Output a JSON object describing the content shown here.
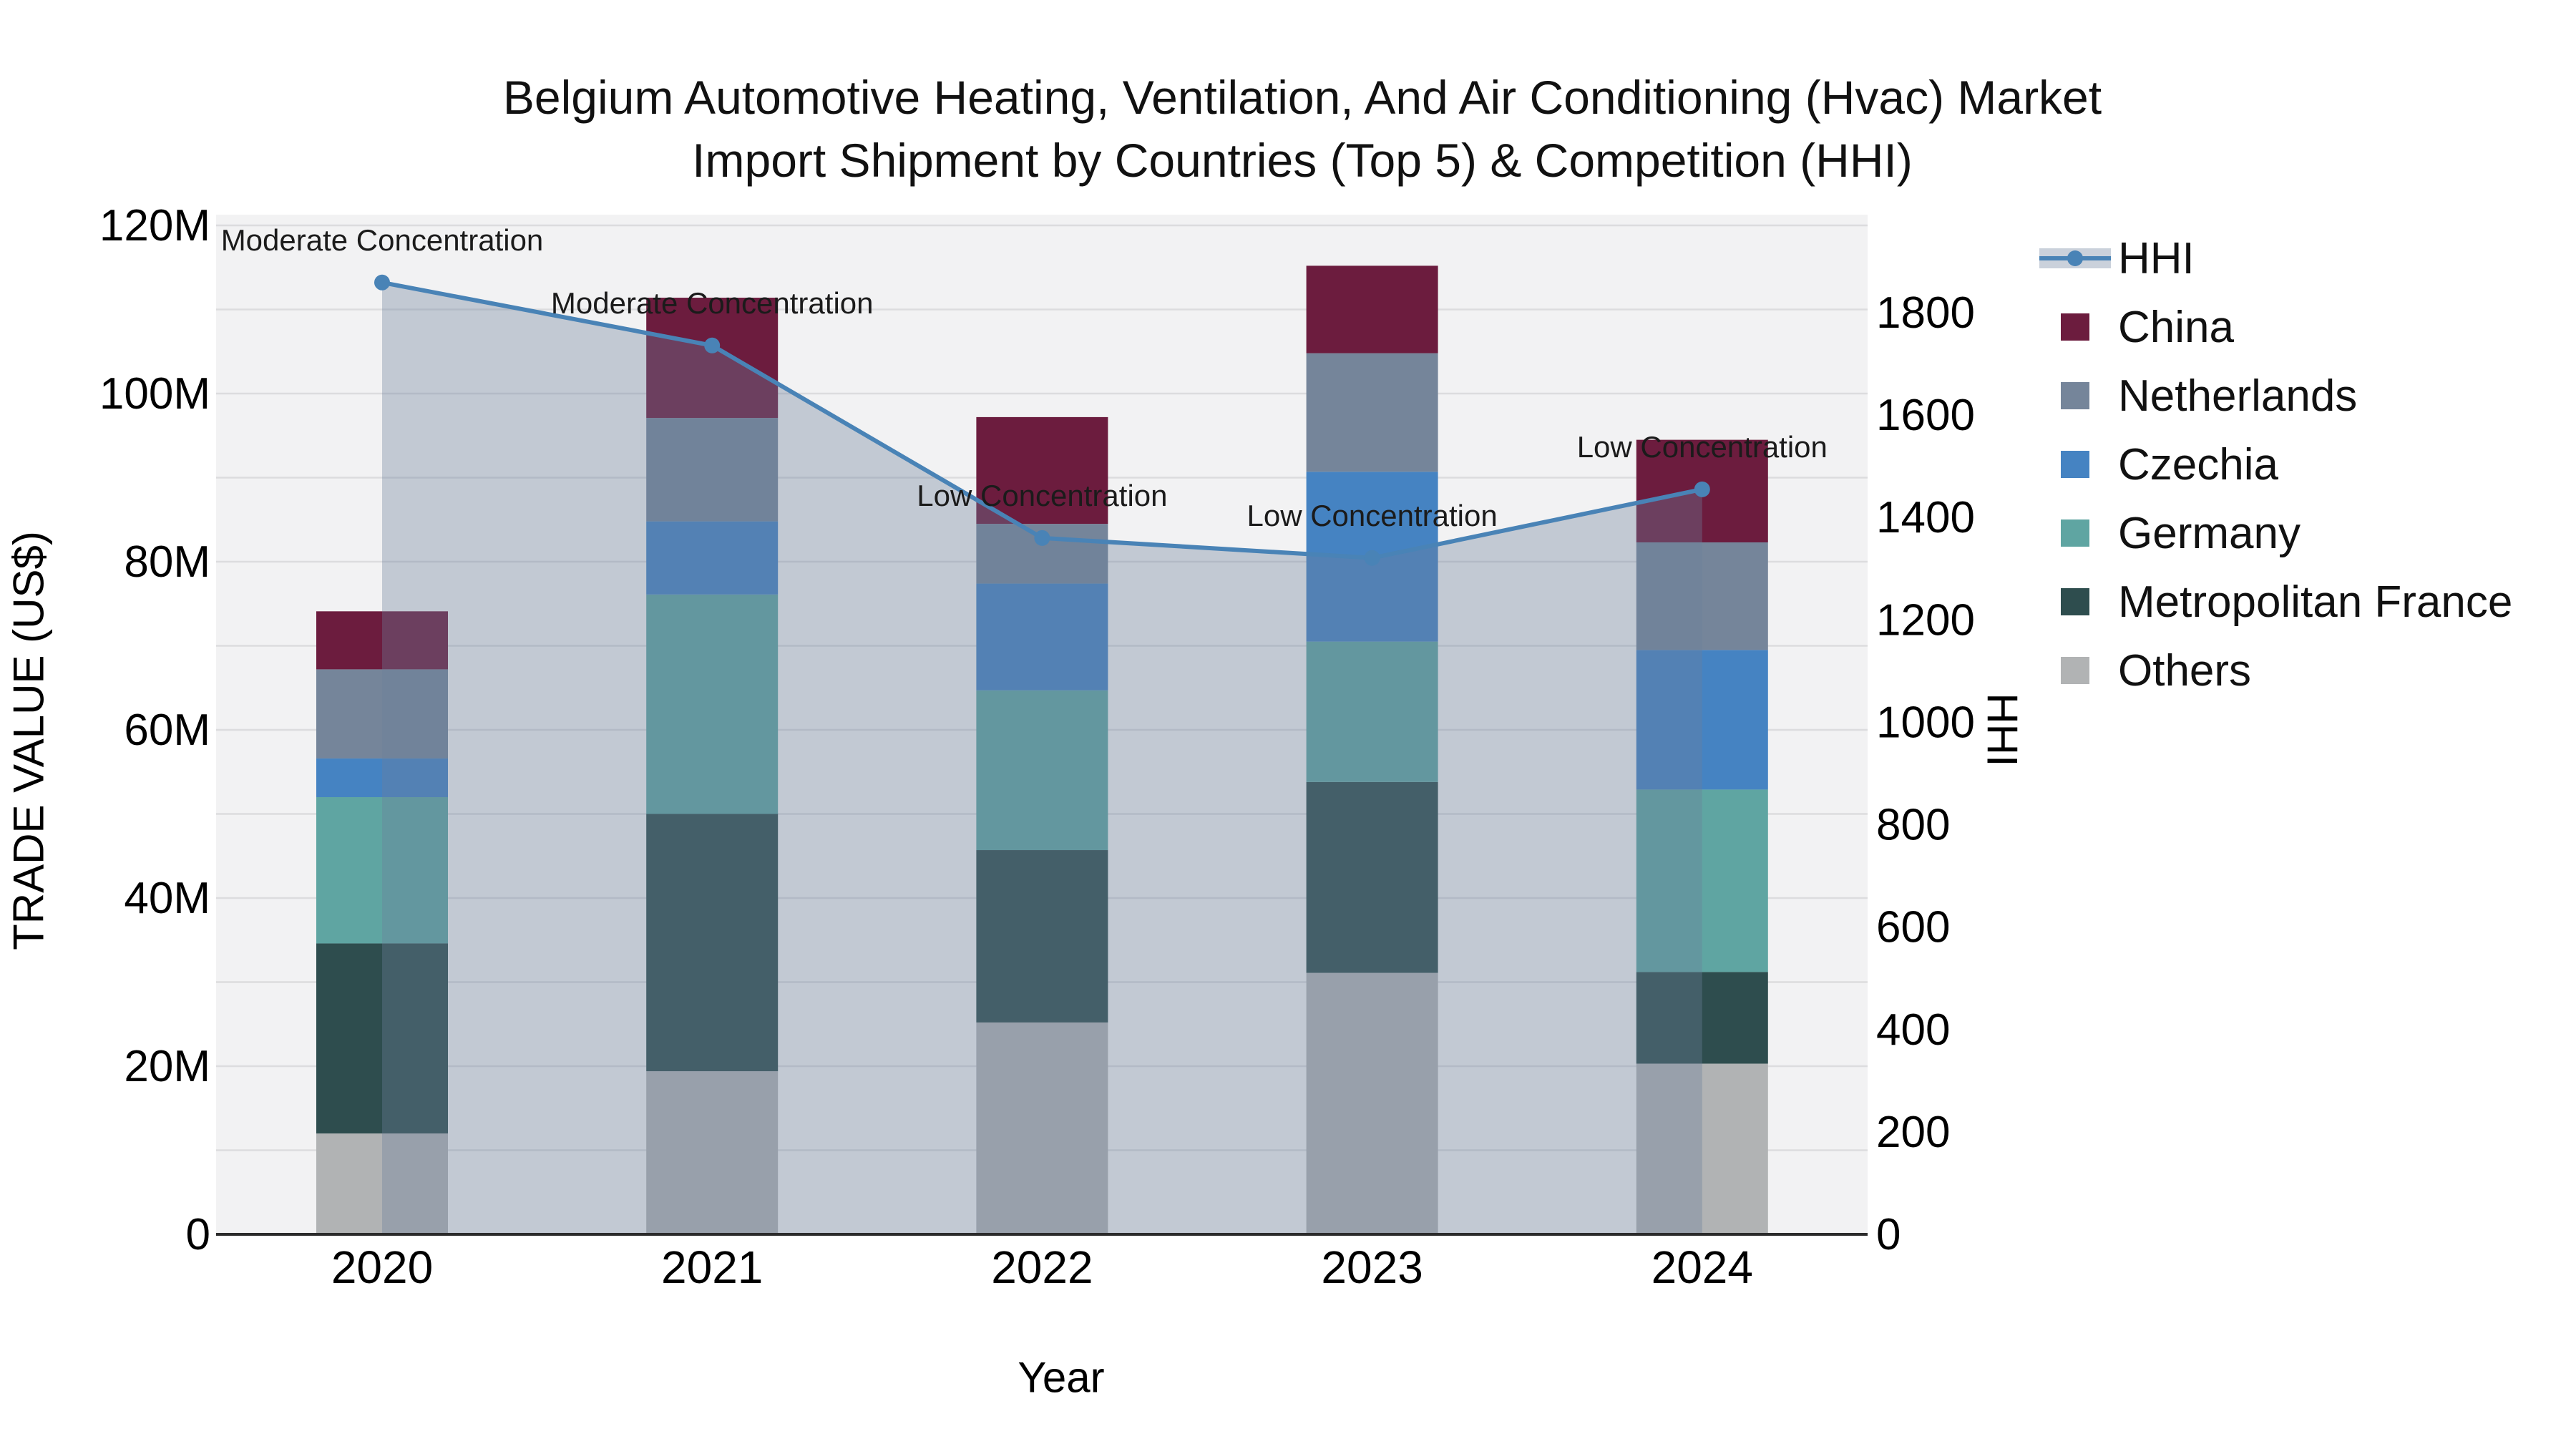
{
  "title": {
    "line1": "Belgium Automotive Heating, Ventilation, And Air Conditioning (Hvac) Market",
    "line2": "Import Shipment by Countries (Top 5) & Competition (HHI)"
  },
  "axes": {
    "left_label": "TRADE VALUE (US$)",
    "right_label": "HHI",
    "x_label": "Year",
    "left_ticks": [
      "0",
      "20M",
      "40M",
      "60M",
      "80M",
      "100M",
      "120M"
    ],
    "right_ticks": [
      "0",
      "200",
      "400",
      "600",
      "800",
      "1000",
      "1200",
      "1400",
      "1600",
      "1800"
    ]
  },
  "legend": [
    {
      "label": "HHI",
      "swatch": "line",
      "color": "#4983B6",
      "fill": "rgba(108,127,155,0.36)"
    },
    {
      "label": "China",
      "swatch": "box",
      "color": "#6C1C3E"
    },
    {
      "label": "Netherlands",
      "swatch": "box",
      "color": "#75859A"
    },
    {
      "label": "Czechia",
      "swatch": "box",
      "color": "#4583C2"
    },
    {
      "label": "Germany",
      "swatch": "box",
      "color": "#5FA5A2"
    },
    {
      "label": "Metropolitan France",
      "swatch": "box",
      "color": "#2E4D4E"
    },
    {
      "label": "Others",
      "swatch": "box",
      "color": "#B1B3B4"
    }
  ],
  "chart_data": {
    "type": "bar+line",
    "title": "Belgium Automotive Heating, Ventilation, And Air Conditioning (Hvac) Market — Import Shipment by Countries (Top 5) & Competition (HHI)",
    "categories": [
      "2020",
      "2021",
      "2022",
      "2023",
      "2024"
    ],
    "xlabel": "Year",
    "ylabel_left": "TRADE VALUE (US$)",
    "ylabel_right": "HHI",
    "ylim_left_musd": [
      0,
      120
    ],
    "ylim_right_hhi": [
      0,
      1980
    ],
    "grid": "horizontal, every 10M",
    "legend_position": "upper right, outside plot",
    "bar_unit": "million US$",
    "stack_order_bottom_to_top": [
      "Others",
      "Metropolitan France",
      "Germany",
      "Czechia",
      "Netherlands",
      "China"
    ],
    "series": [
      {
        "name": "Others",
        "color": "#B1B3B4",
        "values": [
          12.0,
          19.4,
          25.2,
          31.1,
          20.3
        ]
      },
      {
        "name": "Metropolitan France",
        "color": "#2E4D4E",
        "values": [
          22.6,
          30.6,
          20.5,
          22.7,
          10.9
        ]
      },
      {
        "name": "Germany",
        "color": "#5FA5A2",
        "values": [
          17.4,
          26.1,
          19.0,
          16.7,
          21.7
        ]
      },
      {
        "name": "Czechia",
        "color": "#4583C2",
        "values": [
          4.6,
          8.7,
          12.7,
          20.2,
          16.6
        ]
      },
      {
        "name": "Netherlands",
        "color": "#75859A",
        "values": [
          10.6,
          12.3,
          7.1,
          14.1,
          12.8
        ]
      },
      {
        "name": "China",
        "color": "#6C1C3E",
        "values": [
          6.9,
          14.3,
          12.7,
          10.4,
          12.2
        ]
      }
    ],
    "bar_totals_musd": [
      74.1,
      111.4,
      97.2,
      115.2,
      94.5
    ],
    "line_series": {
      "name": "HHI",
      "color": "#4983B6",
      "area_fill": "rgba(108,127,155,0.36)",
      "values": [
        1859,
        1736,
        1360,
        1321,
        1455
      ]
    },
    "annotations": [
      {
        "category": "2020",
        "text": "Moderate Concentration"
      },
      {
        "category": "2021",
        "text": "Moderate Concentration"
      },
      {
        "category": "2022",
        "text": "Low Concentration"
      },
      {
        "category": "2023",
        "text": "Low Concentration"
      },
      {
        "category": "2024",
        "text": "Low Concentration"
      }
    ]
  }
}
